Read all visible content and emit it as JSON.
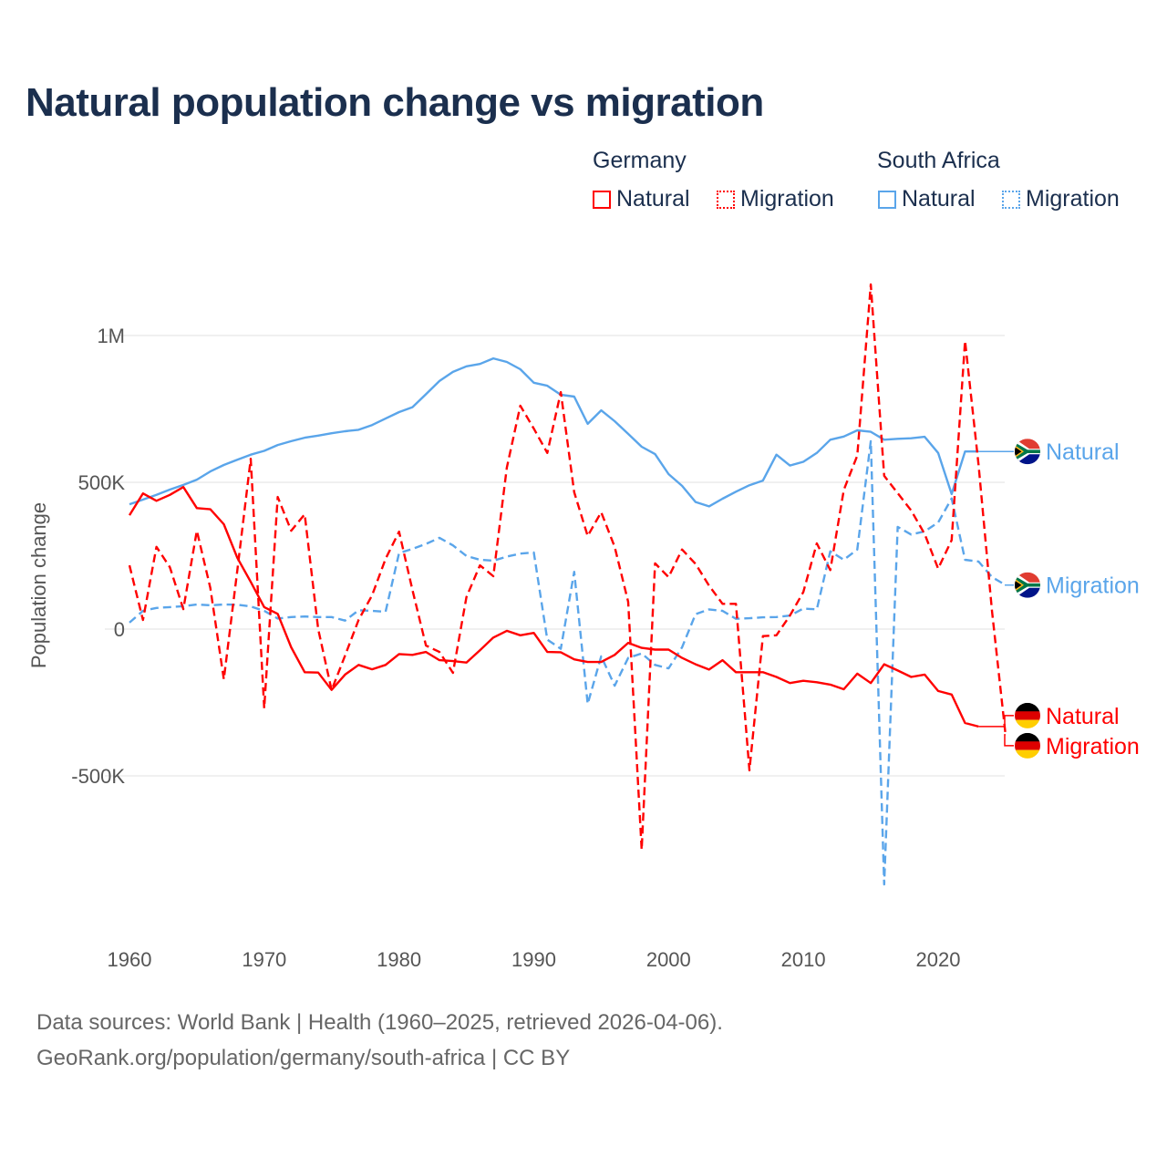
{
  "title": "Natural population change vs migration",
  "legend": {
    "groups": [
      {
        "name": "Germany",
        "items": [
          {
            "label": "Natural",
            "style": "solid"
          },
          {
            "label": "Migration",
            "style": "dotted"
          }
        ],
        "color": "#ff0000"
      },
      {
        "name": "South Africa",
        "items": [
          {
            "label": "Natural",
            "style": "solid"
          },
          {
            "label": "Migration",
            "style": "dotted"
          }
        ],
        "color": "#5aa5ea"
      }
    ]
  },
  "footer": {
    "line1": "Data sources: World Bank | Health (1960–2025, retrieved 2026-04-06).",
    "line2": "GeoRank.org/population/germany/south-africa | CC BY"
  },
  "chart_data": {
    "type": "line",
    "title": "Natural population change vs migration",
    "xlabel": "",
    "ylabel": "Population change",
    "xlim": [
      1960,
      2025
    ],
    "ylim": [
      -1000000,
      1250000
    ],
    "x_ticks": [
      {
        "value": 1960,
        "label": "1960"
      },
      {
        "value": 1970,
        "label": "1970"
      },
      {
        "value": 1980,
        "label": "1980"
      },
      {
        "value": 1990,
        "label": "1990"
      },
      {
        "value": 2000,
        "label": "2000"
      },
      {
        "value": 2010,
        "label": "2010"
      },
      {
        "value": 2020,
        "label": "2020"
      }
    ],
    "y_ticks": [
      {
        "value": 1000000,
        "label": "1M"
      },
      {
        "value": 500000,
        "label": "500K"
      },
      {
        "value": 0,
        "label": "0"
      },
      {
        "value": -500000,
        "label": "-500K"
      }
    ],
    "grid": true,
    "legend_position": "top-right",
    "x_start": 1960,
    "unit": "thousands",
    "series": [
      {
        "name": "South Africa Natural",
        "end_label": "Natural",
        "country": "South Africa",
        "color": "#5aa5ea",
        "dash": false,
        "values": [
          425,
          441,
          457,
          475,
          491,
          509,
          537,
          559,
          577,
          594,
          607,
          627,
          640,
          652,
          659,
          667,
          674,
          679,
          695,
          717,
          739,
          756,
          800,
          845,
          876,
          895,
          903,
          922,
          910,
          885,
          839,
          829,
          798,
          792,
          699,
          745,
          708,
          665,
          621,
          596,
          528,
          488,
          433,
          418,
          444,
          468,
          490,
          506,
          594,
          557,
          570,
          600,
          645,
          656,
          677,
          672,
          645,
          648,
          650,
          655,
          600,
          460,
          605,
          605
        ]
      },
      {
        "name": "South Africa Migration",
        "end_label": "Migration",
        "country": "South Africa",
        "color": "#5aa5ea",
        "dash": true,
        "values": [
          22,
          62,
          72,
          75,
          78,
          84,
          81,
          84,
          83,
          77,
          62,
          36,
          41,
          43,
          41,
          41,
          29,
          64,
          62,
          59,
          259,
          273,
          290,
          311,
          285,
          249,
          236,
          233,
          247,
          257,
          261,
          -36,
          -67,
          195,
          -255,
          -93,
          -193,
          -98,
          -83,
          -122,
          -134,
          -62,
          51,
          67,
          62,
          35,
          37,
          40,
          41,
          46,
          70,
          67,
          265,
          236,
          271,
          640,
          -870,
          348,
          322,
          333,
          363,
          445,
          236,
          230,
          177,
          150
        ]
      },
      {
        "name": "Germany Natural",
        "end_label": "Natural",
        "country": "Germany",
        "color": "#ff0000",
        "dash": false,
        "values": [
          388,
          462,
          437,
          457,
          484,
          412,
          408,
          357,
          243,
          161,
          75,
          52,
          -62,
          -147,
          -148,
          -207,
          -155,
          -122,
          -137,
          -122,
          -85,
          -88,
          -78,
          -106,
          -109,
          -114,
          -72,
          -29,
          -6,
          -21,
          -13,
          -78,
          -79,
          -103,
          -112,
          -112,
          -88,
          -47,
          -64,
          -70,
          -70,
          -98,
          -120,
          -138,
          -106,
          -147,
          -147,
          -147,
          -163,
          -184,
          -176,
          -181,
          -189,
          -205,
          -152,
          -184,
          -120,
          -141,
          -163,
          -155,
          -211,
          -223,
          -320,
          -332
        ]
      },
      {
        "name": "Germany Migration",
        "end_label": "Migration",
        "country": "Germany",
        "color": "#ff0000",
        "dash": true,
        "values": [
          217,
          31,
          280,
          211,
          68,
          335,
          140,
          -171,
          200,
          580,
          -270,
          450,
          335,
          391,
          0,
          -208,
          -90,
          31,
          115,
          239,
          332,
          133,
          -56,
          -78,
          -149,
          109,
          217,
          180,
          550,
          761,
          683,
          600,
          807,
          466,
          317,
          398,
          280,
          93,
          -752,
          224,
          177,
          271,
          222,
          148,
          86,
          86,
          -481,
          -24,
          -21,
          46,
          126,
          292,
          201,
          474,
          591,
          1174,
          522,
          463,
          404,
          324,
          206,
          303,
          982,
          560,
          60,
          -360
        ]
      }
    ]
  }
}
